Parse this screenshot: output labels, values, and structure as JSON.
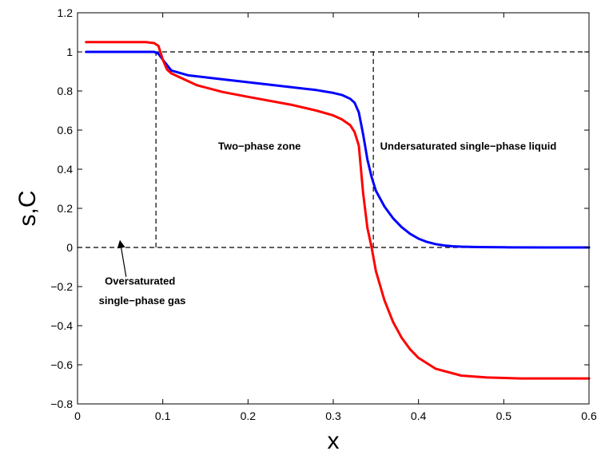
{
  "chart_data": {
    "type": "line",
    "title": "",
    "xlabel": "x",
    "ylabel": "s,C",
    "xlim": [
      0,
      0.6
    ],
    "ylim": [
      -0.8,
      1.2
    ],
    "xticks": [
      0,
      0.1,
      0.2,
      0.3,
      0.4,
      0.5,
      0.6
    ],
    "yticks": [
      -0.8,
      -0.6,
      -0.4,
      -0.2,
      0,
      0.2,
      0.4,
      0.6,
      0.8,
      1,
      1.2
    ],
    "xtick_labels": [
      "0",
      "0.1",
      "0.2",
      "0.3",
      "0.4",
      "0.5",
      "0.6"
    ],
    "ytick_labels": [
      "−0.8",
      "−0.6",
      "−0.4",
      "−0.2",
      "0",
      "0.2",
      "0.4",
      "0.6",
      "0.8",
      "1",
      "1.2"
    ],
    "grid": false,
    "series": [
      {
        "color": "#0000ff",
        "x": [
          0.01,
          0.05,
          0.08,
          0.09,
          0.095,
          0.1,
          0.11,
          0.13,
          0.16,
          0.2,
          0.25,
          0.28,
          0.3,
          0.31,
          0.32,
          0.325,
          0.33,
          0.335,
          0.34,
          0.345,
          0.35,
          0.36,
          0.37,
          0.38,
          0.39,
          0.4,
          0.41,
          0.42,
          0.43,
          0.44,
          0.45,
          0.47,
          0.5,
          0.55,
          0.6
        ],
        "y": [
          1.0,
          1.0,
          1.0,
          1.0,
          0.99,
          0.96,
          0.905,
          0.88,
          0.865,
          0.845,
          0.82,
          0.805,
          0.79,
          0.78,
          0.76,
          0.74,
          0.69,
          0.58,
          0.45,
          0.36,
          0.29,
          0.21,
          0.15,
          0.105,
          0.07,
          0.045,
          0.028,
          0.017,
          0.01,
          0.006,
          0.004,
          0.002,
          0.001,
          0.0,
          0.0
        ]
      },
      {
        "color": "#ff0000",
        "x": [
          0.01,
          0.05,
          0.08,
          0.09,
          0.095,
          0.1,
          0.105,
          0.11,
          0.12,
          0.14,
          0.17,
          0.2,
          0.25,
          0.28,
          0.3,
          0.31,
          0.32,
          0.325,
          0.33,
          0.335,
          0.34,
          0.345,
          0.35,
          0.36,
          0.37,
          0.38,
          0.39,
          0.4,
          0.42,
          0.45,
          0.48,
          0.52,
          0.6
        ],
        "y": [
          1.05,
          1.05,
          1.05,
          1.045,
          1.03,
          0.96,
          0.91,
          0.89,
          0.87,
          0.83,
          0.795,
          0.77,
          0.73,
          0.7,
          0.675,
          0.655,
          0.625,
          0.59,
          0.52,
          0.28,
          0.1,
          0.0,
          -0.12,
          -0.27,
          -0.38,
          -0.46,
          -0.52,
          -0.565,
          -0.62,
          -0.655,
          -0.665,
          -0.67,
          -0.67
        ]
      }
    ],
    "reference_lines": {
      "horizontal": [
        {
          "y": 1.0,
          "x_from": 0.09,
          "x_to": 0.6
        },
        {
          "y": 0.0,
          "x_from": 0.0,
          "x_to": 0.6
        }
      ],
      "vertical": [
        {
          "x": 0.092,
          "y_from": 0.0,
          "y_to": 1.0
        },
        {
          "x": 0.347,
          "y_from": 0.0,
          "y_to": 1.0
        }
      ]
    },
    "annotations": [
      {
        "text": "Two−phase zone",
        "x": 0.165,
        "y": 0.5
      },
      {
        "text": "Undersaturated single−phase liquid",
        "x": 0.355,
        "y": 0.5
      },
      {
        "text": "Oversaturated",
        "x": 0.032,
        "y": -0.19
      },
      {
        "text": "single−phase gas",
        "x": 0.025,
        "y": -0.29
      }
    ],
    "arrow": {
      "from": [
        0.057,
        -0.15
      ],
      "to": [
        0.05,
        0.03
      ]
    }
  }
}
